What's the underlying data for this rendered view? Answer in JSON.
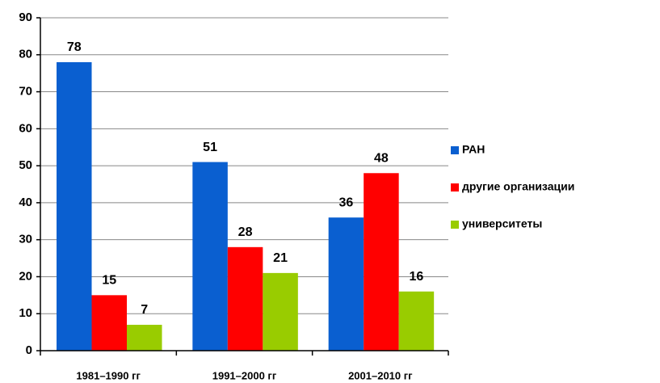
{
  "chart_data": {
    "type": "bar",
    "categories": [
      "1981–1990 гг",
      "1991–2000 гг",
      "2001–2010 гг"
    ],
    "series": [
      {
        "name": "РАН",
        "color": "#0a5fd0",
        "values": [
          78,
          51,
          36
        ]
      },
      {
        "name": "другие организации",
        "color": "#ff0000",
        "values": [
          15,
          28,
          48
        ]
      },
      {
        "name": "университеты",
        "color": "#99cc00",
        "values": [
          7,
          21,
          16
        ]
      }
    ],
    "ylim": [
      0,
      90
    ],
    "yticks": [
      0,
      10,
      20,
      30,
      40,
      50,
      60,
      70,
      80,
      90
    ],
    "grid": true,
    "legend": "right"
  }
}
